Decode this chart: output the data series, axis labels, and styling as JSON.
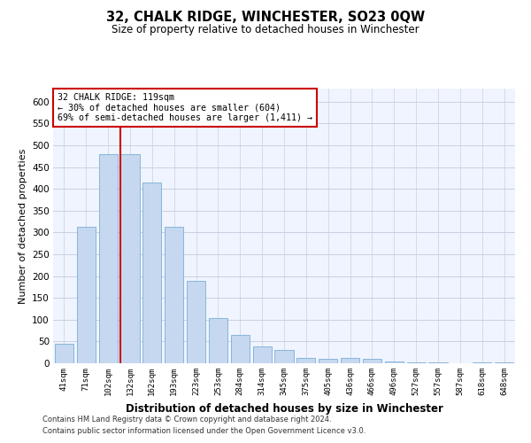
{
  "title": "32, CHALK RIDGE, WINCHESTER, SO23 0QW",
  "subtitle": "Size of property relative to detached houses in Winchester",
  "xlabel": "Distribution of detached houses by size in Winchester",
  "ylabel": "Number of detached properties",
  "categories": [
    "41sqm",
    "71sqm",
    "102sqm",
    "132sqm",
    "162sqm",
    "193sqm",
    "223sqm",
    "253sqm",
    "284sqm",
    "314sqm",
    "345sqm",
    "375sqm",
    "405sqm",
    "436sqm",
    "466sqm",
    "496sqm",
    "527sqm",
    "557sqm",
    "587sqm",
    "618sqm",
    "648sqm"
  ],
  "values": [
    45,
    313,
    480,
    480,
    415,
    313,
    190,
    103,
    65,
    38,
    30,
    13,
    10,
    12,
    10,
    5,
    3,
    2,
    0,
    3,
    2
  ],
  "bar_color": "#c5d8f0",
  "bar_edge_color": "#7aafd4",
  "vline_color": "#cc0000",
  "vline_bar_index": 2.55,
  "annotation_text": "32 CHALK RIDGE: 119sqm\n← 30% of detached houses are smaller (604)\n69% of semi-detached houses are larger (1,411) →",
  "annotation_box_color": "white",
  "annotation_box_edge": "#cc0000",
  "ylim": [
    0,
    630
  ],
  "yticks": [
    0,
    50,
    100,
    150,
    200,
    250,
    300,
    350,
    400,
    450,
    500,
    550,
    600
  ],
  "bg_color": "#f0f4ff",
  "grid_color": "#c8d0e0",
  "footer1": "Contains HM Land Registry data © Crown copyright and database right 2024.",
  "footer2": "Contains public sector information licensed under the Open Government Licence v3.0."
}
